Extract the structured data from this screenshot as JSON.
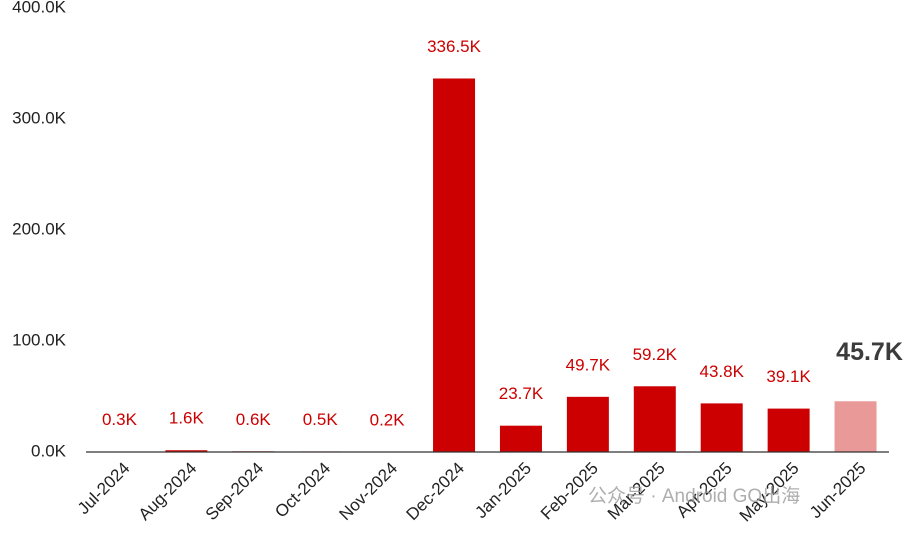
{
  "chart_data": {
    "type": "bar",
    "categories": [
      "Jul-2024",
      "Aug-2024",
      "Sep-2024",
      "Oct-2024",
      "Nov-2024",
      "Dec-2024",
      "Jan-2025",
      "Feb-2025",
      "Mar-2025",
      "Apr-2025",
      "May-2025",
      "Jun-2025"
    ],
    "values": [
      0.3,
      1.6,
      0.6,
      0.5,
      0.2,
      336.5,
      23.7,
      49.7,
      59.2,
      43.8,
      39.1,
      45.7
    ],
    "value_labels": [
      "0.3K",
      "1.6K",
      "0.6K",
      "0.5K",
      "0.2K",
      "336.5K",
      "23.7K",
      "49.7K",
      "59.2K",
      "43.8K",
      "39.1K",
      "45.7K"
    ],
    "colors": [
      "#cc0000",
      "#cc0000",
      "#cc0000",
      "#cc0000",
      "#cc0000",
      "#cc0000",
      "#cc0000",
      "#cc0000",
      "#cc0000",
      "#cc0000",
      "#cc0000",
      "#ea9999"
    ],
    "ylim": [
      0,
      400
    ],
    "yticks": [
      {
        "value": 0,
        "label": "0.0K"
      },
      {
        "value": 100,
        "label": "100.0K"
      },
      {
        "value": 200,
        "label": "200.0K"
      },
      {
        "value": 300,
        "label": "300.0K"
      },
      {
        "value": 400,
        "label": "400.0K"
      }
    ],
    "grid": false,
    "watermark": "公众号 · Android GO出海"
  }
}
